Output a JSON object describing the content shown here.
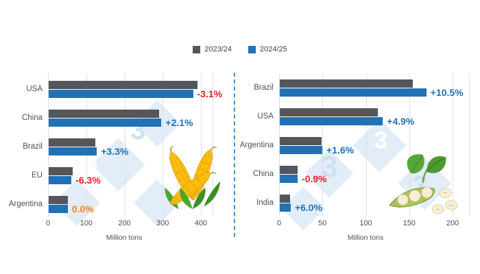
{
  "legend": {
    "items": [
      {
        "label": "2023/24",
        "color": "#54565A"
      },
      {
        "label": "2024/25",
        "color": "#2171B5"
      }
    ]
  },
  "watermark": {
    "glyph": "3"
  },
  "colors": {
    "bar_2023": "#54565A",
    "bar_2024": "#2171B5",
    "positive_text": "#2171B5",
    "negative_text": "#ED1C24",
    "neutral_text": "#F5821F",
    "grid": "#DDDFE2",
    "divider": "#4A8FCB",
    "watermark_fill": "#E3EDF8"
  },
  "chart_data": [
    {
      "type": "bar",
      "orientation": "horizontal",
      "commodity": "corn",
      "categories": [
        "USA",
        "China",
        "Brazil",
        "EU",
        "Argentina"
      ],
      "series": [
        {
          "name": "2023/24",
          "values": [
            389.7,
            288.8,
            122.0,
            63.6,
            50.0
          ]
        },
        {
          "name": "2024/25",
          "values": [
            377.6,
            294.9,
            126.0,
            59.6,
            50.0
          ]
        }
      ],
      "change_labels": [
        "-3.1%",
        "+2.1%",
        "+3.3%",
        "-6.3%",
        "0.0%"
      ],
      "change_colors": [
        "#ED1C24",
        "#2171B5",
        "#2171B5",
        "#ED1C24",
        "#F5821F"
      ],
      "xlabel": "Million tons",
      "xticks": [
        0,
        100,
        200,
        300,
        400
      ],
      "xlim": [
        0,
        430
      ],
      "grid": true,
      "legend_position": "top"
    },
    {
      "type": "bar",
      "orientation": "horizontal",
      "commodity": "soybean",
      "categories": [
        "Brazil",
        "USA",
        "Argentina",
        "China",
        "India"
      ],
      "series": [
        {
          "name": "2023/24",
          "values": [
            153.0,
            113.3,
            48.2,
            20.8,
            11.9
          ]
        },
        {
          "name": "2024/25",
          "values": [
            169.0,
            118.8,
            49.0,
            20.6,
            12.6
          ]
        }
      ],
      "change_labels": [
        "+10.5%",
        "+4.9%",
        "+1.6%",
        "-0.9%",
        "+6.0%"
      ],
      "change_colors": [
        "#2171B5",
        "#2171B5",
        "#2171B5",
        "#ED1C24",
        "#2171B5"
      ],
      "xlabel": "Million tons",
      "xticks": [
        0,
        50,
        100,
        150,
        200
      ],
      "xlim": [
        0,
        220
      ],
      "grid": true,
      "legend_position": "top"
    }
  ]
}
